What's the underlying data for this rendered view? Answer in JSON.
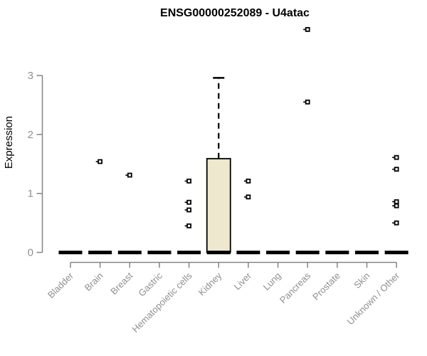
{
  "chart_data": {
    "type": "box",
    "title": "ENSG00000252089 - U4atac",
    "ylabel": "Expression",
    "xlabel": "",
    "ylim": [
      0,
      3
    ],
    "yticks": [
      0,
      1,
      2,
      3
    ],
    "grid": false,
    "legend": "none",
    "categories": [
      "Bladder",
      "Brain",
      "Breast",
      "Gastric",
      "Hematopoietic cells",
      "Kidney",
      "Liver",
      "Lung",
      "Pancreas",
      "Prostate",
      "Skin",
      "Unknown / Other"
    ],
    "colors": {
      "box_fill": "#EDE8CE",
      "box_border": "#000000",
      "median": "#000000",
      "outlier": "#000000",
      "axis": "#848484",
      "tick_text": "#8F8F8F",
      "title_text": "#000000",
      "background": "#FFFFFF"
    },
    "boxes": [
      {
        "category": "Bladder",
        "median": 0,
        "q1": 0,
        "q3": 0,
        "whisker_low": 0,
        "whisker_high": 0,
        "outliers": []
      },
      {
        "category": "Brain",
        "median": 0,
        "q1": 0,
        "q3": 0,
        "whisker_low": 0,
        "whisker_high": 0,
        "outliers": [
          1.54
        ]
      },
      {
        "category": "Breast",
        "median": 0,
        "q1": 0,
        "q3": 0,
        "whisker_low": 0,
        "whisker_high": 0,
        "outliers": [
          1.31
        ]
      },
      {
        "category": "Gastric",
        "median": 0,
        "q1": 0,
        "q3": 0,
        "whisker_low": 0,
        "whisker_high": 0,
        "outliers": []
      },
      {
        "category": "Hematopoietic cells",
        "median": 0,
        "q1": 0,
        "q3": 0,
        "whisker_low": 0,
        "whisker_high": 0,
        "outliers": [
          1.21,
          0.85,
          0.72,
          0.45
        ]
      },
      {
        "category": "Kidney",
        "median": 0,
        "q1": 0,
        "q3": 1.59,
        "whisker_low": 0,
        "whisker_high": 2.96,
        "outliers": []
      },
      {
        "category": "Liver",
        "median": 0,
        "q1": 0,
        "q3": 0,
        "whisker_low": 0,
        "whisker_high": 0,
        "outliers": [
          1.21,
          0.94
        ]
      },
      {
        "category": "Lung",
        "median": 0,
        "q1": 0,
        "q3": 0,
        "whisker_low": 0,
        "whisker_high": 0,
        "outliers": []
      },
      {
        "category": "Pancreas",
        "median": 0,
        "q1": 0,
        "q3": 0,
        "whisker_low": 0,
        "whisker_high": 0,
        "outliers": [
          3.78,
          2.55
        ]
      },
      {
        "category": "Prostate",
        "median": 0,
        "q1": 0,
        "q3": 0,
        "whisker_low": 0,
        "whisker_high": 0,
        "outliers": []
      },
      {
        "category": "Skin",
        "median": 0,
        "q1": 0,
        "q3": 0,
        "whisker_low": 0,
        "whisker_high": 0,
        "outliers": []
      },
      {
        "category": "Unknown / Other",
        "median": 0,
        "q1": 0,
        "q3": 0,
        "whisker_low": 0,
        "whisker_high": 0,
        "outliers": [
          1.61,
          1.41,
          0.86,
          0.79,
          0.5
        ]
      }
    ]
  }
}
